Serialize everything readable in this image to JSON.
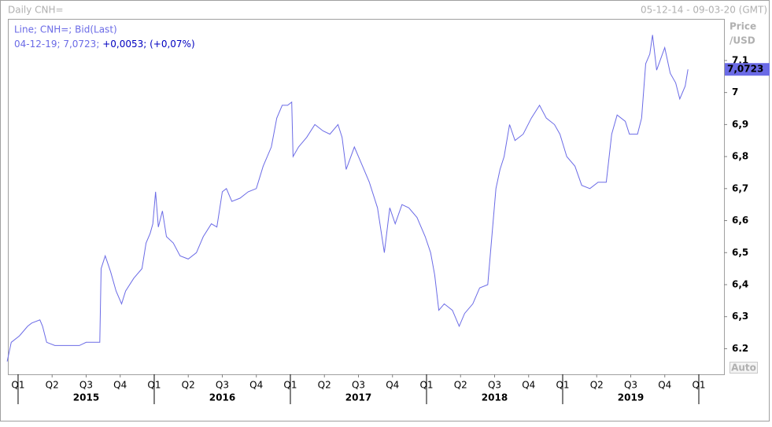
{
  "chart_data": {
    "type": "line",
    "title": "Daily CNH=",
    "date_range": "05-12-14 - 09-03-20 (GMT)",
    "legend_line": "Line; CNH=; Bid(Last)",
    "info_date": "04-12-19; 7,0723;",
    "info_change": "+0,0053; (+0,07%)",
    "y_label": [
      "Price",
      "/USD"
    ],
    "auto_button": "Auto",
    "last_price": {
      "value": 7.0723,
      "label": "7,0723"
    },
    "x": [
      2014.92,
      2014.95,
      2015.01,
      2015.07,
      2015.1,
      2015.16,
      2015.18,
      2015.21,
      2015.27,
      2015.33,
      2015.39,
      2015.45,
      2015.5,
      2015.56,
      2015.6,
      2015.61,
      2015.64,
      2015.68,
      2015.72,
      2015.76,
      2015.79,
      2015.85,
      2015.91,
      2015.94,
      2015.97,
      2015.99,
      2016.01,
      2016.03,
      2016.06,
      2016.09,
      2016.14,
      2016.19,
      2016.25,
      2016.31,
      2016.36,
      2016.42,
      2016.46,
      2016.5,
      2016.53,
      2016.57,
      2016.63,
      2016.69,
      2016.75,
      2016.8,
      2016.86,
      2016.9,
      2016.94,
      2016.98,
      2017.01,
      2017.02,
      2017.06,
      2017.12,
      2017.18,
      2017.24,
      2017.29,
      2017.35,
      2017.38,
      2017.41,
      2017.47,
      2017.53,
      2017.58,
      2017.64,
      2017.69,
      2017.73,
      2017.77,
      2017.82,
      2017.87,
      2017.93,
      2017.99,
      2018.03,
      2018.06,
      2018.09,
      2018.13,
      2018.19,
      2018.24,
      2018.28,
      2018.34,
      2018.39,
      2018.45,
      2018.48,
      2018.51,
      2018.54,
      2018.57,
      2018.61,
      2018.65,
      2018.71,
      2018.77,
      2018.83,
      2018.88,
      2018.94,
      2018.98,
      2019.03,
      2019.09,
      2019.14,
      2019.2,
      2019.26,
      2019.32,
      2019.36,
      2019.4,
      2019.46,
      2019.49,
      2019.55,
      2019.58,
      2019.61,
      2019.64,
      2019.66,
      2019.69,
      2019.75,
      2019.79,
      2019.83,
      2019.86,
      2019.9,
      2019.92
    ],
    "series": [
      {
        "name": "CNH=",
        "color": "#6b6be6",
        "values": [
          6.16,
          6.22,
          6.24,
          6.27,
          6.28,
          6.29,
          6.27,
          6.22,
          6.21,
          6.21,
          6.21,
          6.21,
          6.22,
          6.22,
          6.22,
          6.45,
          6.49,
          6.44,
          6.38,
          6.34,
          6.38,
          6.42,
          6.45,
          6.53,
          6.56,
          6.59,
          6.69,
          6.58,
          6.63,
          6.55,
          6.53,
          6.49,
          6.48,
          6.5,
          6.55,
          6.59,
          6.58,
          6.69,
          6.7,
          6.66,
          6.67,
          6.69,
          6.7,
          6.77,
          6.83,
          6.92,
          6.96,
          6.96,
          6.97,
          6.8,
          6.83,
          6.86,
          6.9,
          6.88,
          6.87,
          6.9,
          6.86,
          6.76,
          6.83,
          6.77,
          6.72,
          6.64,
          6.5,
          6.64,
          6.59,
          6.65,
          6.64,
          6.61,
          6.55,
          6.5,
          6.43,
          6.32,
          6.34,
          6.32,
          6.27,
          6.31,
          6.34,
          6.39,
          6.4,
          6.55,
          6.7,
          6.76,
          6.8,
          6.9,
          6.85,
          6.87,
          6.92,
          6.96,
          6.92,
          6.9,
          6.87,
          6.8,
          6.77,
          6.71,
          6.7,
          6.72,
          6.72,
          6.87,
          6.93,
          6.91,
          6.87,
          6.87,
          6.92,
          7.09,
          7.12,
          7.18,
          7.07,
          7.14,
          7.06,
          7.03,
          6.98,
          7.02,
          7.0723
        ]
      }
    ],
    "xlim": [
      2014.925,
      2020.185
    ],
    "ylim": [
      6.12,
      7.23
    ],
    "yticks": [
      6.2,
      {
        "value": 6.3,
        "label": "6,3"
      },
      {
        "value": 6.4,
        "label": "6,4"
      },
      {
        "value": 6.5,
        "label": "6,5"
      },
      {
        "value": 6.6,
        "label": "6,6"
      },
      {
        "value": 6.7,
        "label": "6,7"
      },
      {
        "value": 6.8,
        "label": "6,8"
      },
      {
        "value": 6.9,
        "label": "6,9"
      },
      7,
      {
        "value": 7.1,
        "label": "7,1"
      }
    ],
    "xticks": [
      {
        "value": 2015,
        "label": "Q1"
      },
      {
        "value": 2015.25,
        "label": "Q2"
      },
      {
        "value": 2015.5,
        "label": "Q3"
      },
      {
        "value": 2015.75,
        "label": "Q4"
      },
      {
        "value": 2016,
        "label": "Q1"
      },
      {
        "value": 2016.25,
        "label": "Q2"
      },
      {
        "value": 2016.5,
        "label": "Q3"
      },
      {
        "value": 2016.75,
        "label": "Q4"
      },
      {
        "value": 2017,
        "label": "Q1"
      },
      {
        "value": 2017.25,
        "label": "Q2"
      },
      {
        "value": 2017.5,
        "label": "Q3"
      },
      {
        "value": 2017.75,
        "label": "Q4"
      },
      {
        "value": 2018,
        "label": "Q1"
      },
      {
        "value": 2018.25,
        "label": "Q2"
      },
      {
        "value": 2018.5,
        "label": "Q3"
      },
      {
        "value": 2018.75,
        "label": "Q4"
      },
      {
        "value": 2019,
        "label": "Q1"
      },
      {
        "value": 2019.25,
        "label": "Q2"
      },
      {
        "value": 2019.5,
        "label": "Q3"
      },
      {
        "value": 2019.75,
        "label": "Q4"
      },
      {
        "value": 2020,
        "label": "Q1"
      }
    ],
    "years": [
      2015,
      2016,
      2017,
      2018,
      2019
    ]
  }
}
